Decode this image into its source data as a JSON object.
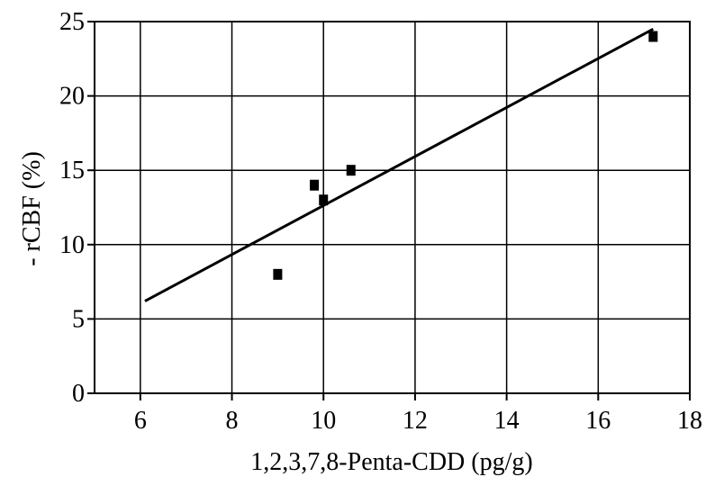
{
  "chart_data": {
    "type": "scatter",
    "title": "",
    "xlabel": "1,2,3,7,8-Penta-CDD (pg/g)",
    "ylabel": "- rCBF (%)",
    "xlim": [
      5,
      18
    ],
    "ylim": [
      0,
      25
    ],
    "xticks": [
      6,
      8,
      10,
      12,
      14,
      16,
      18
    ],
    "yticks": [
      0,
      5,
      10,
      15,
      20,
      25
    ],
    "grid": true,
    "legend": "none",
    "points": [
      {
        "x": 9.0,
        "y": 8.0
      },
      {
        "x": 9.8,
        "y": 14.0
      },
      {
        "x": 10.0,
        "y": 13.0
      },
      {
        "x": 10.6,
        "y": 15.0
      },
      {
        "x": 17.2,
        "y": 24.0
      }
    ],
    "fit_line": {
      "x": [
        6.1,
        17.2
      ],
      "y": [
        6.2,
        24.5
      ]
    }
  }
}
